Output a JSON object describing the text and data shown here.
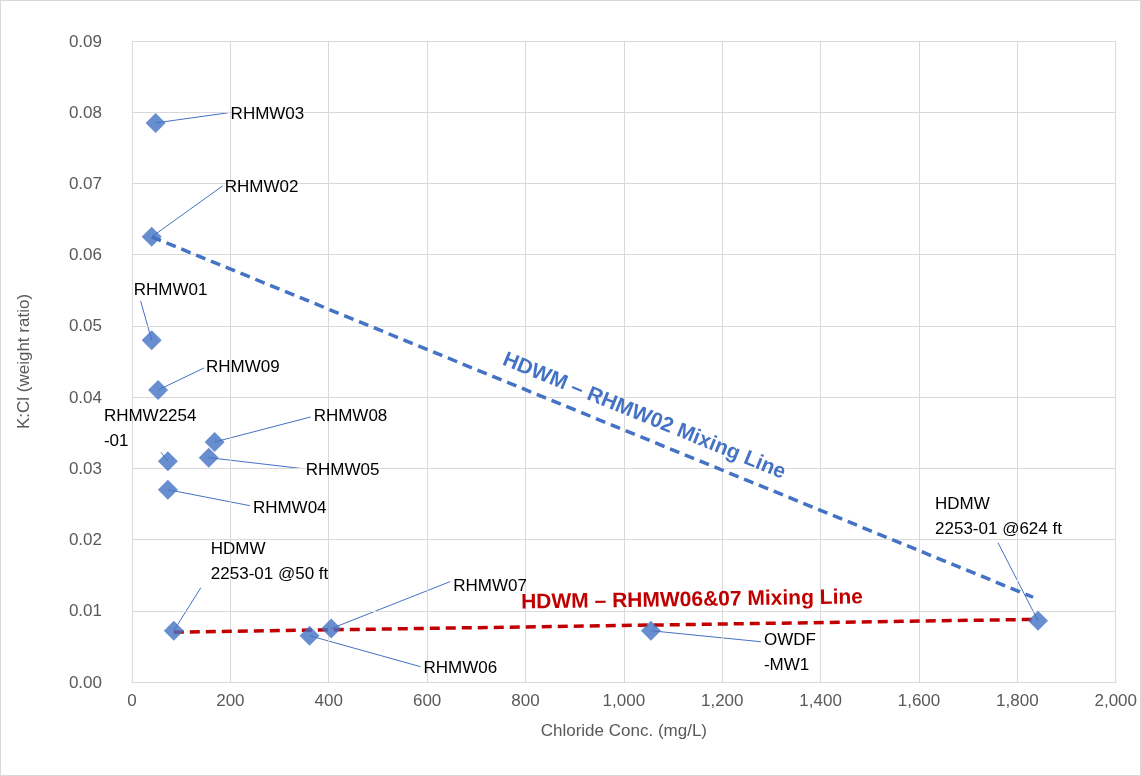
{
  "chart_data": {
    "type": "scatter",
    "xlabel": "Chloride Conc. (mg/L)",
    "ylabel": "K:Cl (weight ratio)",
    "xlim": [
      0,
      2000
    ],
    "xticks": [
      0,
      200,
      400,
      600,
      800,
      {
        "value": 1000,
        "label": "1,000"
      },
      {
        "value": 1200,
        "label": "1,200"
      },
      {
        "value": 1400,
        "label": "1,400"
      },
      {
        "value": 1600,
        "label": "1,600"
      },
      {
        "value": 1800,
        "label": "1,800"
      },
      {
        "value": 2000,
        "label": "2,000"
      }
    ],
    "ylim": [
      0,
      0.09
    ],
    "yticks": [
      {
        "value": 0,
        "label": "0.00"
      },
      0.01,
      0.02,
      0.03,
      0.04,
      0.05,
      0.06,
      0.07,
      0.08,
      0.09
    ],
    "grid": true,
    "series": [
      {
        "marker": "diamond",
        "color": "#4472c4",
        "x": [
          48,
          40,
          40,
          53,
          73,
          73,
          168,
          156,
          85,
          361,
          405,
          1055,
          1842
        ],
        "values": [
          0.0785,
          0.0625,
          0.048,
          0.041,
          0.031,
          0.027,
          0.0337,
          0.0315,
          0.0072,
          0.0065,
          0.0075,
          0.0072,
          0.0086
        ]
      },
      {
        "type": "line",
        "marker": "none",
        "name": "HDWM – RHMW02 Mixing Line",
        "color": "#4472c4",
        "line_style": "dashed",
        "x": [
          40,
          1832
        ],
        "values": [
          0.0625,
          0.0119
        ]
      },
      {
        "type": "line",
        "marker": "none",
        "name": "HDWM – RHMW06&07 Mixing Line",
        "color": "#c00000",
        "line_style": "dashed",
        "x": [
          85,
          1842
        ],
        "values": [
          0.007,
          0.0088
        ]
      }
    ],
    "annotations": [
      {
        "text": "RHMW03",
        "x": 48,
        "y": 0.0785
      },
      {
        "text": "RHMW02",
        "x": 40,
        "y": 0.0625
      },
      {
        "text": "RHMW01",
        "x": 40,
        "y": 0.048
      },
      {
        "text": "RHMW09",
        "x": 53,
        "y": 0.041
      },
      {
        "text": "RHMW2254\n-01",
        "x": 73,
        "y": 0.031
      },
      {
        "text": "RHMW04",
        "x": 73,
        "y": 0.027
      },
      {
        "text": "RHMW08",
        "x": 168,
        "y": 0.0337
      },
      {
        "text": "RHMW05",
        "x": 156,
        "y": 0.0315
      },
      {
        "text": "HDMW\n2253-01 @50 ft",
        "x": 85,
        "y": 0.0072
      },
      {
        "text": "RHMW06",
        "x": 361,
        "y": 0.0065
      },
      {
        "text": "RHMW07",
        "x": 405,
        "y": 0.0075
      },
      {
        "text": "OWDF\n-MW1",
        "x": 1055,
        "y": 0.0072
      },
      {
        "text": "HDMW\n2253-01 @624 ft",
        "x": 1842,
        "y": 0.0086
      }
    ]
  }
}
